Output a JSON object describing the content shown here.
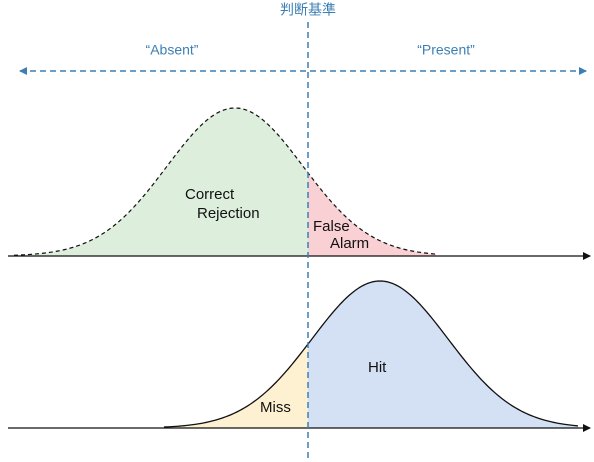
{
  "criterion": {
    "label": "判断基準"
  },
  "regions": {
    "absent": "“Absent”",
    "present": "“Present”"
  },
  "noise": {
    "correct_rejection": [
      "Correct",
      "Rejection"
    ],
    "false_alarm": [
      "False",
      "Alarm"
    ]
  },
  "signal": {
    "miss": "Miss",
    "hit": "Hit"
  }
}
